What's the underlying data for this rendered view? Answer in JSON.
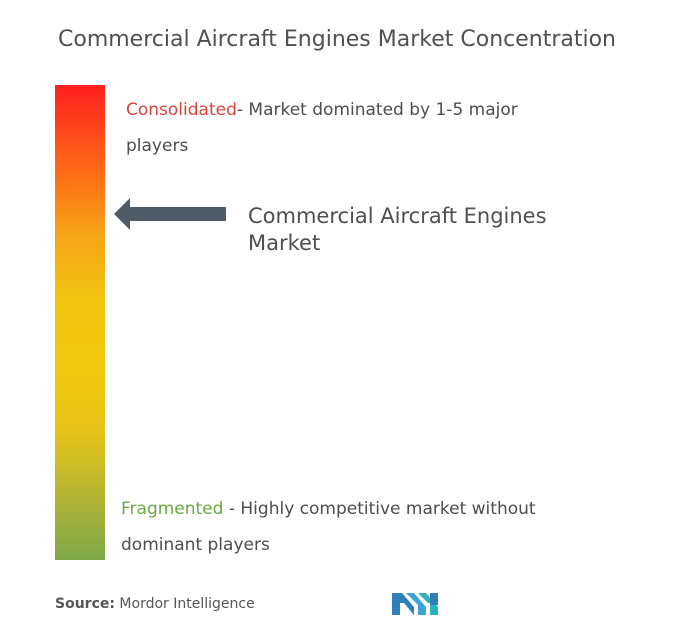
{
  "title": "Commercial Aircraft Engines Market Concentration",
  "scale": {
    "top_color": "#ff1f1f",
    "middle_color": "#f2c410",
    "bottom_color": "#7fa84a"
  },
  "consolidated": {
    "term": "Consolidated",
    "description": "- Market dominated by 1-5 major players",
    "color": "#d6463c"
  },
  "fragmented": {
    "term": "Fragmented",
    "description": " - Highly competitive market without dominant players",
    "color": "#6aa845"
  },
  "market_pointer": {
    "label": "Commercial Aircraft Engines Market",
    "arrow_color": "#4f5b66"
  },
  "source": {
    "prefix": "Source:",
    "name": " Mordor Intelligence"
  },
  "logo": {
    "icon": "mordor-intelligence-logo-icon"
  }
}
